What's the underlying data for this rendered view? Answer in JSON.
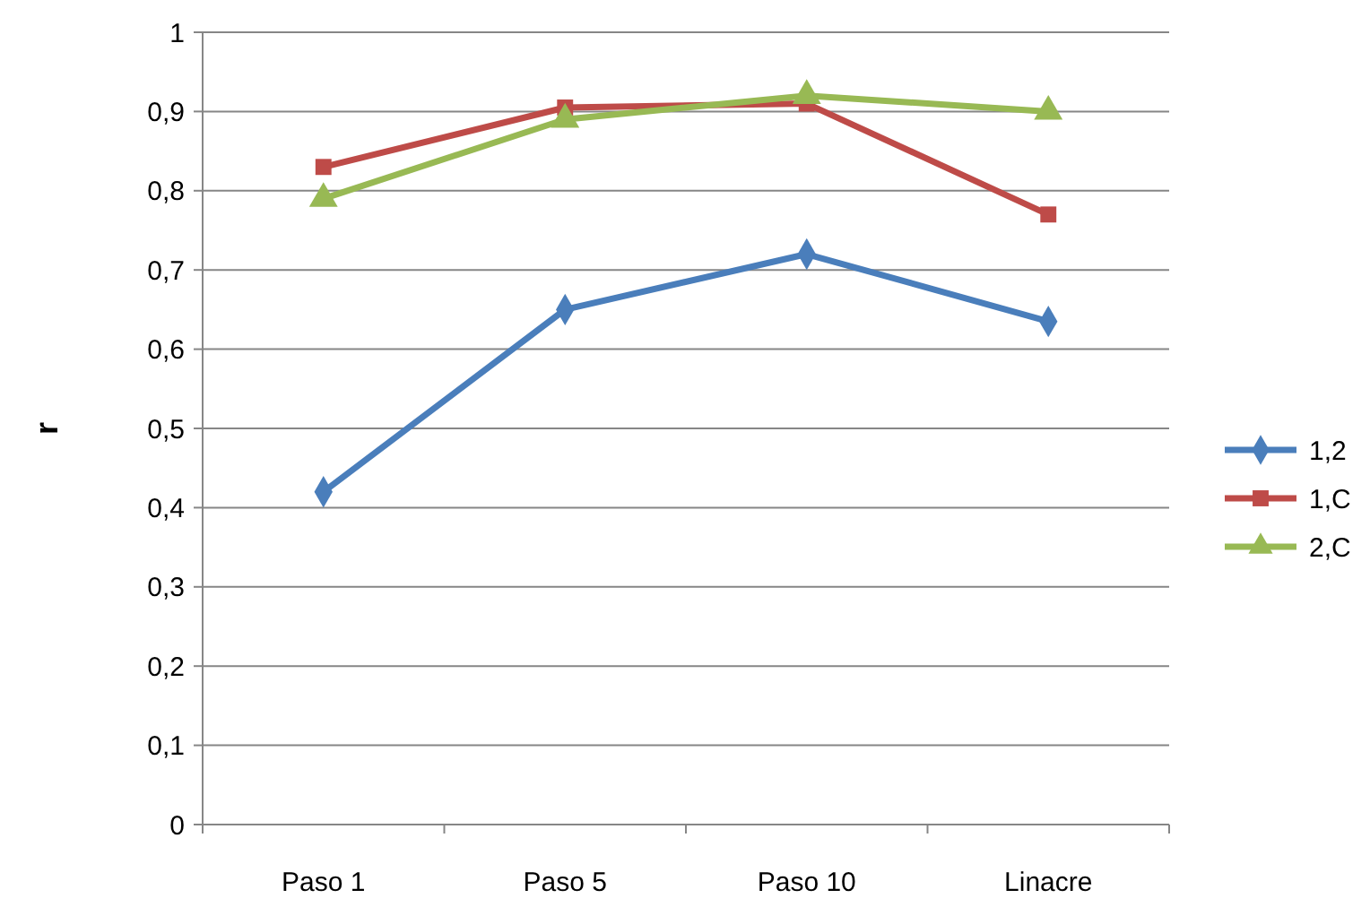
{
  "chart_data": {
    "type": "line",
    "ylabel": "r",
    "categories": [
      "Paso 1",
      "Paso 5",
      "Paso 10",
      "Linacre"
    ],
    "ylim": [
      0,
      1
    ],
    "yticks": [
      {
        "value": 0,
        "label": "0"
      },
      {
        "value": 0.1,
        "label": "0,1"
      },
      {
        "value": 0.2,
        "label": "0,2"
      },
      {
        "value": 0.3,
        "label": "0,3"
      },
      {
        "value": 0.4,
        "label": "0,4"
      },
      {
        "value": 0.5,
        "label": "0,5"
      },
      {
        "value": 0.6,
        "label": "0,6"
      },
      {
        "value": 0.7,
        "label": "0,7"
      },
      {
        "value": 0.8,
        "label": "0,8"
      },
      {
        "value": 0.9,
        "label": "0,9"
      },
      {
        "value": 1,
        "label": "1"
      }
    ],
    "grid": "y",
    "legend": "right",
    "line_style": "solid",
    "series": [
      {
        "name": "1,2",
        "color": "#4a7ebb",
        "marker": "diamond",
        "values": [
          0.42,
          0.65,
          0.72,
          0.635
        ]
      },
      {
        "name": "1,C",
        "color": "#be4b48",
        "marker": "square",
        "values": [
          0.83,
          0.905,
          0.91,
          0.77
        ]
      },
      {
        "name": "2,C",
        "color": "#98b954",
        "marker": "triangle",
        "values": [
          0.79,
          0.89,
          0.92,
          0.9
        ]
      }
    ]
  }
}
